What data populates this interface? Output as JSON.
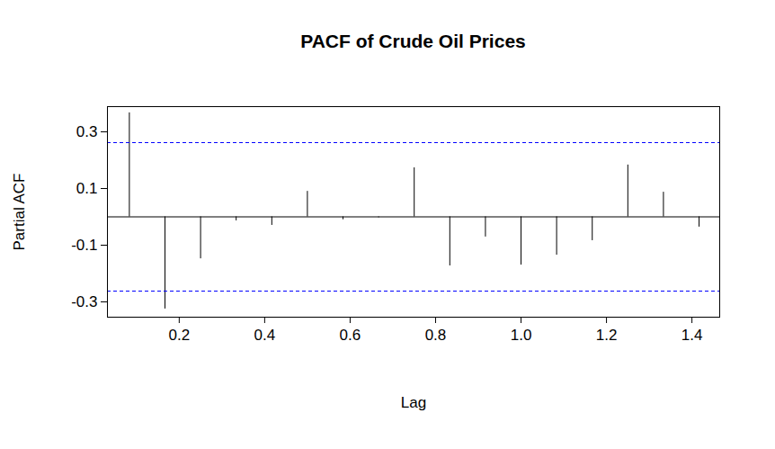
{
  "chart_data": {
    "type": "pacf",
    "title": "PACF of Crude Oil Prices",
    "x_label": "Lag",
    "y_label": "Partial ACF",
    "x": [
      0.0833,
      0.1667,
      0.25,
      0.3333,
      0.4167,
      0.5,
      0.5833,
      0.6667,
      0.75,
      0.8333,
      0.9167,
      1.0,
      1.0833,
      1.1667,
      1.25,
      1.3333,
      1.4167
    ],
    "values": [
      0.367,
      -0.325,
      -0.148,
      -0.014,
      -0.03,
      0.09,
      -0.01,
      -0.003,
      0.173,
      -0.173,
      -0.071,
      -0.17,
      -0.135,
      -0.084,
      0.183,
      0.087,
      -0.036
    ],
    "color": "black",
    "ci_lines": [
      0.262,
      -0.262
    ],
    "ci_color": "blue",
    "xlim": [
      0.032,
      1.465
    ],
    "ylim": [
      -0.354,
      0.389
    ],
    "xticks": [
      0.2,
      0.4,
      0.6,
      0.8,
      {
        "value": 1,
        "label": "1.0"
      },
      1.2,
      1.4
    ],
    "yticks": [
      -0.3,
      -0.1,
      0.1,
      0.3
    ]
  }
}
